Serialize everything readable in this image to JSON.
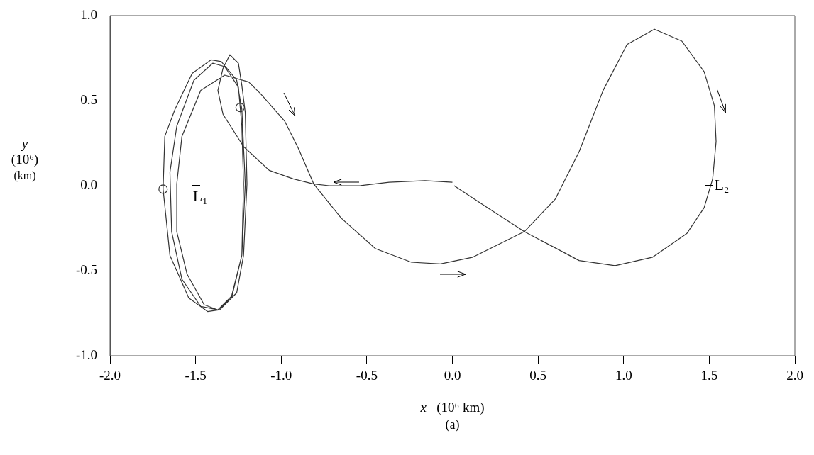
{
  "chart_data": {
    "type": "line",
    "xlabel": "x (10⁶ km)",
    "ylabel": "y (10⁶) (km)",
    "xlim": [
      -2,
      2
    ],
    "ylim": [
      -1,
      1
    ],
    "xticks": [
      {
        "value": -2,
        "label": "-2.0"
      },
      {
        "value": -1.5,
        "label": "-1.5"
      },
      {
        "value": -1,
        "label": "-1.0"
      },
      {
        "value": -0.5,
        "label": "-0.5"
      },
      {
        "value": 0,
        "label": "0.0"
      },
      {
        "value": 0.5,
        "label": "0.5"
      },
      {
        "value": 1,
        "label": "1.0"
      },
      {
        "value": 1.5,
        "label": "1.5"
      },
      {
        "value": 2,
        "label": "2.0"
      }
    ],
    "yticks": [
      {
        "value": -1,
        "label": "-1.0"
      },
      {
        "value": -0.5,
        "label": "-0.5"
      },
      {
        "value": 0,
        "label": "0.0"
      },
      {
        "value": 0.5,
        "label": "0.5"
      },
      {
        "value": 1,
        "label": "1.0"
      }
    ],
    "grid": false,
    "legend": false,
    "marker": "none",
    "line_style": "solid",
    "series": [
      {
        "type": "line",
        "color": "#333333",
        "x": [
          0.0,
          -0.16,
          -0.37,
          -0.54,
          -0.72,
          -0.81,
          -0.93,
          -1.07,
          -1.22,
          -1.34,
          -1.37,
          -1.34,
          -1.3,
          -1.25,
          -1.23,
          -1.21,
          -1.2,
          -1.22,
          -1.26,
          -1.36,
          -1.43,
          -1.54,
          -1.65,
          -1.69,
          -1.68,
          -1.62,
          -1.52,
          -1.41,
          -1.35,
          -1.26,
          -1.23,
          -1.21,
          -1.23,
          -1.29,
          -1.37,
          -1.47,
          -1.58,
          -1.64,
          -1.65,
          -1.61,
          -1.51,
          -1.4,
          -1.33,
          -1.25,
          -1.23,
          -1.22,
          -1.23,
          -1.29,
          -1.37,
          -1.45,
          -1.55,
          -1.61,
          -1.61,
          -1.58,
          -1.47,
          -1.33,
          -1.19,
          -1.12,
          -0.98,
          -0.9,
          -0.81,
          -0.65,
          -0.45,
          -0.24,
          -0.07,
          0.12,
          0.42,
          0.6,
          0.74,
          0.88,
          1.02,
          1.18,
          1.34,
          1.47,
          1.53,
          1.54,
          1.52,
          1.47,
          1.37,
          1.17,
          0.95,
          0.74,
          0.42,
          0.19,
          0.01
        ],
        "values": [
          0.02,
          0.03,
          0.02,
          0.0,
          0.0,
          0.01,
          0.04,
          0.09,
          0.23,
          0.42,
          0.56,
          0.69,
          0.77,
          0.72,
          0.59,
          0.43,
          0.01,
          -0.41,
          -0.63,
          -0.73,
          -0.74,
          -0.66,
          -0.41,
          -0.02,
          0.29,
          0.45,
          0.66,
          0.74,
          0.73,
          0.62,
          0.45,
          0.01,
          -0.41,
          -0.66,
          -0.73,
          -0.71,
          -0.55,
          -0.27,
          0.08,
          0.35,
          0.62,
          0.72,
          0.7,
          0.58,
          0.35,
          0.01,
          -0.41,
          -0.65,
          -0.73,
          -0.7,
          -0.52,
          -0.27,
          0.01,
          0.29,
          0.56,
          0.65,
          0.61,
          0.54,
          0.38,
          0.22,
          0.01,
          -0.19,
          -0.37,
          -0.45,
          -0.46,
          -0.42,
          -0.27,
          -0.08,
          0.2,
          0.56,
          0.83,
          0.92,
          0.85,
          0.67,
          0.47,
          0.26,
          0.04,
          -0.13,
          -0.28,
          -0.42,
          -0.47,
          -0.44,
          -0.27,
          -0.12,
          0.0
        ]
      },
      {
        "type": "scatter",
        "color": "#333333",
        "marker": "circle",
        "x": [
          -1.69,
          -1.24
        ],
        "values": [
          -0.02,
          0.46
        ]
      }
    ],
    "annotations": [
      "L₁",
      "L₂",
      "(a)"
    ]
  }
}
